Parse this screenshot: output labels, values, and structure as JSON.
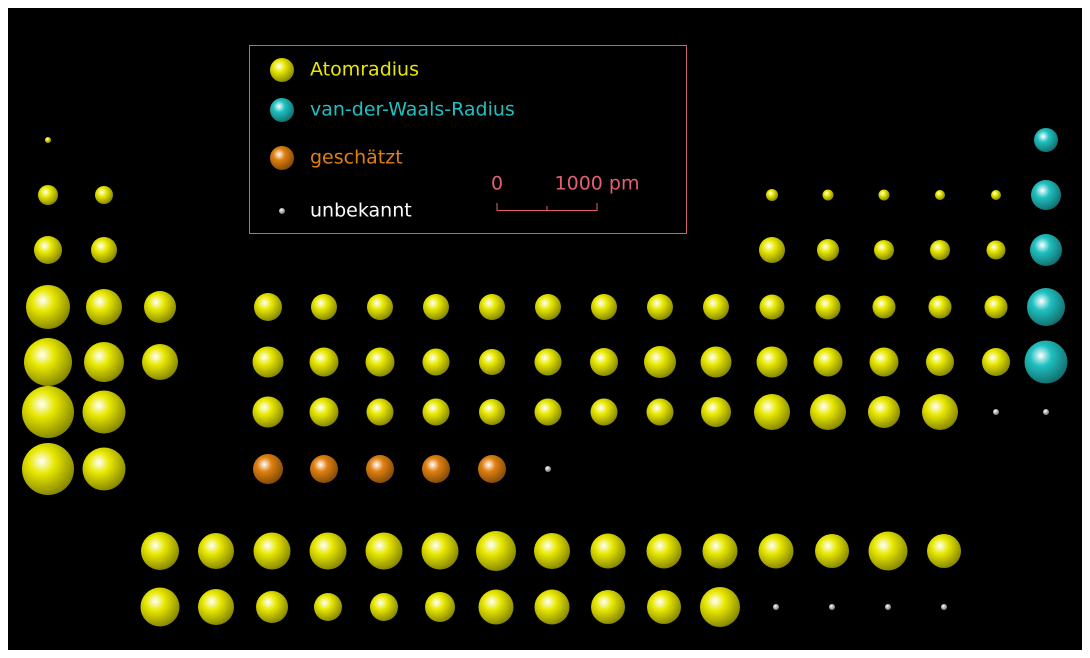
{
  "legend": {
    "items": [
      {
        "label": "Atomradius",
        "color": "#e8e800"
      },
      {
        "label": "van-der-Waals-Radius",
        "color": "#20c0c0"
      },
      {
        "label": "geschätzt",
        "color": "#e08010"
      },
      {
        "label": "unbekannt",
        "color": "#c8c8c8"
      }
    ]
  },
  "scale": {
    "ticks": [
      {
        "value": 0,
        "label": "0"
      },
      {
        "value": 1000,
        "label": "1000 pm"
      }
    ],
    "minor_ticks": [
      500
    ]
  },
  "periods": [
    [
      {
        "v": 30,
        "k": 0
      },
      null,
      null,
      null,
      null,
      null,
      null,
      null,
      null,
      null,
      null,
      null,
      null,
      null,
      null,
      null,
      null,
      {
        "v": 120,
        "k": 1
      }
    ],
    [
      {
        "v": 100,
        "k": 0
      },
      {
        "v": 90,
        "k": 0
      },
      null,
      null,
      null,
      null,
      null,
      null,
      null,
      null,
      null,
      null,
      {
        "v": 60,
        "k": 0
      },
      {
        "v": 55,
        "k": 0
      },
      {
        "v": 55,
        "k": 0
      },
      {
        "v": 50,
        "k": 0
      },
      {
        "v": 50,
        "k": 0
      },
      {
        "v": 150,
        "k": 1
      }
    ],
    [
      {
        "v": 140,
        "k": 0
      },
      {
        "v": 130,
        "k": 0
      },
      null,
      null,
      null,
      null,
      null,
      null,
      null,
      null,
      null,
      null,
      {
        "v": 130,
        "k": 0
      },
      {
        "v": 110,
        "k": 0
      },
      {
        "v": 100,
        "k": 0
      },
      {
        "v": 100,
        "k": 0
      },
      {
        "v": 95,
        "k": 0
      },
      {
        "v": 160,
        "k": 1
      }
    ],
    [
      {
        "v": 220,
        "k": 0
      },
      {
        "v": 180,
        "k": 0
      },
      {
        "v": 160,
        "k": 0
      },
      {
        "v": 140,
        "k": 0
      },
      {
        "v": 130,
        "k": 0
      },
      {
        "v": 130,
        "k": 0
      },
      {
        "v": 130,
        "k": 0
      },
      {
        "v": 130,
        "k": 0
      },
      {
        "v": 130,
        "k": 0
      },
      {
        "v": 130,
        "k": 0
      },
      {
        "v": 130,
        "k": 0
      },
      {
        "v": 130,
        "k": 0
      },
      {
        "v": 125,
        "k": 0
      },
      {
        "v": 125,
        "k": 0
      },
      {
        "v": 115,
        "k": 0
      },
      {
        "v": 115,
        "k": 0
      },
      {
        "v": 115,
        "k": 0
      },
      {
        "v": 190,
        "k": 1
      }
    ],
    [
      {
        "v": 240,
        "k": 0
      },
      {
        "v": 200,
        "k": 0
      },
      {
        "v": 180,
        "k": 0
      },
      {
        "v": 155,
        "k": 0
      },
      {
        "v": 145,
        "k": 0
      },
      {
        "v": 145,
        "k": 0
      },
      {
        "v": 135,
        "k": 0
      },
      {
        "v": 130,
        "k": 0
      },
      {
        "v": 135,
        "k": 0
      },
      {
        "v": 140,
        "k": 0
      },
      {
        "v": 160,
        "k": 0
      },
      {
        "v": 155,
        "k": 0
      },
      {
        "v": 155,
        "k": 0
      },
      {
        "v": 145,
        "k": 0
      },
      {
        "v": 145,
        "k": 0
      },
      {
        "v": 140,
        "k": 0
      },
      {
        "v": 140,
        "k": 0
      },
      {
        "v": 215,
        "k": 1
      }
    ],
    [
      {
        "v": 260,
        "k": 0
      },
      {
        "v": 215,
        "k": 0
      },
      null,
      {
        "v": 155,
        "k": 0
      },
      {
        "v": 145,
        "k": 0
      },
      {
        "v": 135,
        "k": 0
      },
      {
        "v": 135,
        "k": 0
      },
      {
        "v": 130,
        "k": 0
      },
      {
        "v": 135,
        "k": 0
      },
      {
        "v": 135,
        "k": 0
      },
      {
        "v": 135,
        "k": 0
      },
      {
        "v": 150,
        "k": 0
      },
      {
        "v": 180,
        "k": 0
      },
      {
        "v": 180,
        "k": 0
      },
      {
        "v": 160,
        "k": 0
      },
      {
        "v": 180,
        "k": 0
      },
      {
        "v": null,
        "k": 3
      },
      {
        "v": null,
        "k": 3
      }
    ],
    [
      {
        "v": 260,
        "k": 0
      },
      {
        "v": 215,
        "k": 0
      },
      null,
      {
        "v": 150,
        "k": 2
      },
      {
        "v": 140,
        "k": 2
      },
      {
        "v": 140,
        "k": 2
      },
      {
        "v": 140,
        "k": 2
      },
      {
        "v": 140,
        "k": 2
      },
      {
        "v": null,
        "k": 3
      },
      null,
      null,
      null,
      null,
      null,
      null,
      null,
      null,
      null
    ]
  ],
  "f_block": [
    [
      {
        "v": 190,
        "k": 0
      },
      {
        "v": 180,
        "k": 0
      },
      {
        "v": 185,
        "k": 0
      },
      {
        "v": 185,
        "k": 0
      },
      {
        "v": 185,
        "k": 0
      },
      {
        "v": 185,
        "k": 0
      },
      {
        "v": 200,
        "k": 0
      },
      {
        "v": 180,
        "k": 0
      },
      {
        "v": 175,
        "k": 0
      },
      {
        "v": 175,
        "k": 0
      },
      {
        "v": 175,
        "k": 0
      },
      {
        "v": 175,
        "k": 0
      },
      {
        "v": 170,
        "k": 0
      },
      {
        "v": 195,
        "k": 0
      },
      {
        "v": 170,
        "k": 0
      }
    ],
    [
      {
        "v": 195,
        "k": 0
      },
      {
        "v": 180,
        "k": 0
      },
      {
        "v": 160,
        "k": 0
      },
      {
        "v": 140,
        "k": 0
      },
      {
        "v": 140,
        "k": 0
      },
      {
        "v": 150,
        "k": 0
      },
      {
        "v": 175,
        "k": 0
      },
      {
        "v": 175,
        "k": 0
      },
      {
        "v": 170,
        "k": 0
      },
      {
        "v": 170,
        "k": 0
      },
      {
        "v": 200,
        "k": 0
      },
      {
        "v": null,
        "k": 3
      },
      {
        "v": null,
        "k": 3
      },
      {
        "v": null,
        "k": 3
      },
      {
        "v": null,
        "k": 3
      }
    ]
  ]
}
